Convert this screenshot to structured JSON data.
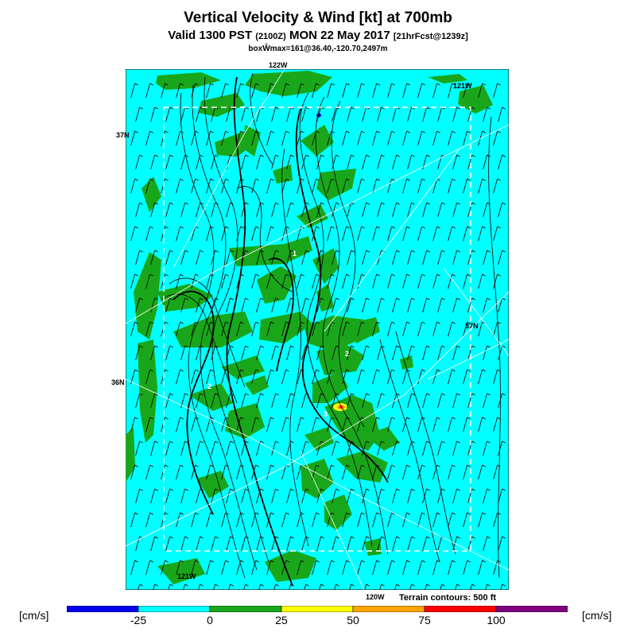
{
  "header": {
    "title": "Vertical Velocity & Wind [kt] at 700mb",
    "valid_prefix": "Valid 1300 PST",
    "valid_utc": "(2100Z)",
    "valid_date": "MON 22 May 2017",
    "forecast": "[21hrFcst@1239z]",
    "boxmax": "boxŴmax=161@36.40,-120.70,2497m"
  },
  "map": {
    "background_color": "#00ffff",
    "ascent_color": "#1aa61a",
    "grid_labels": {
      "lon_122_top": "122W",
      "lon_121_top": "121W",
      "lat_37_left": "37N",
      "lat_37_right": "37N",
      "lat_36_left": "36N",
      "lon_121_bottom": "121W",
      "lon_120_bottom": "120W"
    },
    "contour_labels": [
      "1",
      "2",
      "3",
      "2"
    ],
    "terrain_note": "Terrain contours: 500 ft"
  },
  "colorbar": {
    "unit_left": "[cm/s]",
    "unit_right": "[cm/s]",
    "segments": [
      "#0000ee",
      "#00ffff",
      "#1aa61a",
      "#ffff00",
      "#ffa500",
      "#ff0000",
      "#800080"
    ],
    "ticks": [
      "-25",
      "0",
      "25",
      "50",
      "75",
      "100"
    ]
  }
}
